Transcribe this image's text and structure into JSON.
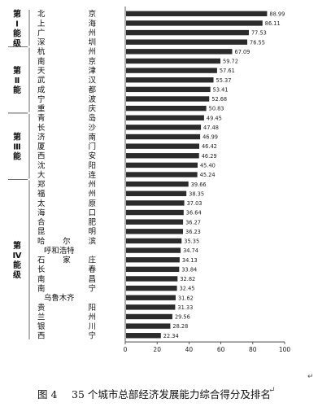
{
  "chart_data": {
    "type": "bar",
    "orientation": "horizontal",
    "categories": [
      "北京",
      "上海",
      "广州",
      "深圳",
      "杭州",
      "南京",
      "天津",
      "武汉",
      "成都",
      "宁波",
      "重庆",
      "青岛",
      "长沙",
      "济南",
      "厦门",
      "西安",
      "沈阳",
      "大连",
      "郑州",
      "福州",
      "太原",
      "海口",
      "合肥",
      "昆明",
      "哈尔滨",
      "呼和浩特",
      "石家庄",
      "长春",
      "南昌",
      "南宁",
      "乌鲁木齐",
      "贵阳",
      "兰州",
      "银川",
      "西宁"
    ],
    "values": [
      88.99,
      86.11,
      77.53,
      76.55,
      67.09,
      59.72,
      57.61,
      55.37,
      53.41,
      52.68,
      50.83,
      49.45,
      47.48,
      46.99,
      46.42,
      46.29,
      45.4,
      45.24,
      39.66,
      38.35,
      37.03,
      36.64,
      36.27,
      36.23,
      35.35,
      34.74,
      34.13,
      33.84,
      32.82,
      32.45,
      31.62,
      31.33,
      29.56,
      28.28,
      22.34
    ],
    "value_labels": [
      "88.99",
      "86.11",
      "77.53",
      "76.55",
      "67.09",
      "59.72",
      "57.61",
      "55.37",
      "53.41",
      "52.68",
      "50.83",
      "49.45",
      "47.48",
      "46.99",
      "46.42",
      "46.29",
      "45.40",
      "45.24",
      "39.66",
      "38.35",
      "37.03",
      "36.64",
      "36.27",
      "36.23",
      "35.35",
      "34.74",
      "34.13",
      "33.84",
      "32.82",
      "32.45",
      "31.62",
      "31.33",
      "29.56",
      "28.28",
      "22.34"
    ],
    "groups": [
      {
        "label": "第Ⅰ能级",
        "count": 4
      },
      {
        "label": "第Ⅱ能",
        "count": 7
      },
      {
        "label": "第Ⅲ能",
        "count": 7
      },
      {
        "label": "第Ⅳ能级",
        "count": 17
      }
    ],
    "xlim": [
      0,
      100
    ],
    "xticks": [
      "0",
      "20",
      "40",
      "60",
      "80",
      "100"
    ],
    "bar_color": "#2b2b2b",
    "grid": false
  },
  "caption": {
    "figure_label": "图 4",
    "text": "35 个城市总部经济发展能力综合得分及排名",
    "mark": "↵"
  },
  "corner_mark": "↵"
}
